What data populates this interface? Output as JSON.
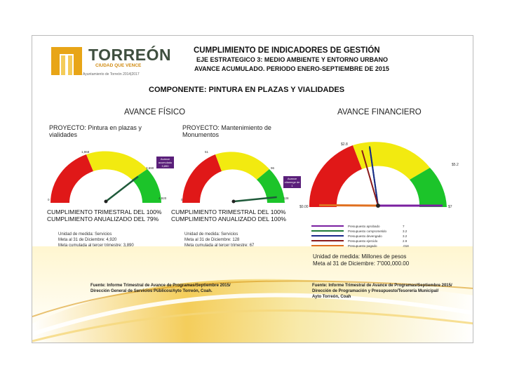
{
  "header": {
    "brand": "TORREÓN",
    "tagline": "CIUDAD QUE VENCE",
    "admin": "Ayuntamiento de Torreón 2014|2017",
    "title": "CUMPLIMIENTO DE INDICADORES DE GESTIÓN",
    "axis": "EJE ESTRATEGICO 3:  MEDIO AMBIENTE Y ENTORNO URBANO",
    "period": "AVANCE ACUMULADO. PERIODO ENERO-SEPTIEMBRE DE 2015",
    "component": "COMPONENTE: PINTURA EN PLAZAS Y VIALIDADES"
  },
  "sections": {
    "physical": "AVANCE FÍSICO",
    "financial": "AVANCE FINANCIERO"
  },
  "project1": {
    "title": "PROYECTO: Pintura en plazas y vialidades",
    "gauge": {
      "min_label": "0",
      "max_label": "4,920",
      "left_label": "1,968",
      "mid_label": "3,690",
      "callout": "Avance acumulado 3,890",
      "value": 3890,
      "max": 4920
    },
    "cumpl_trim": "CUMPLIMIENTO TRIMESTRAL DEL 100%",
    "cumpl_anual": "CUMPLIMIENTO ANUALIZADO DEL 79%",
    "unit": "Unidad de medida: Servicios",
    "goal": "Meta al 31 de Diciembre: 4,920",
    "accum": "Meta cumulada al tercer trimestre: 3,890"
  },
  "project2": {
    "title": "PROYECTO: Mantenimiento de Monumentos",
    "gauge": {
      "min_label": "0",
      "max_label": "128",
      "left_label": "51",
      "mid_label": "96",
      "callout": "Avance ctiamnge de 1",
      "value": 124,
      "max": 128
    },
    "cumpl_trim": "CUMPLIMIENTO TRIMESTRAL DEL 100%",
    "cumpl_anual": "CUMPLIMIENTO ANUALIZADO DEL 100%",
    "unit": "Unidad de medida: Servicios",
    "goal": "Meta al 31 de Diciembre: 128",
    "accum": "Meta cumulada al tercer trimestre: 67"
  },
  "financial": {
    "gauge": {
      "min_label": "$0.00",
      "max_label": "$7",
      "left_label": "$2.8",
      "right_label": "$5.2"
    },
    "legend": [
      {
        "label": "Presupuesto aprobado",
        "value": "7",
        "color": "#7a1fa0"
      },
      {
        "label": "Presupuesto comprometido",
        "value": "3.2",
        "color": "#1f7a3a"
      },
      {
        "label": "Presupuesto devengado",
        "value": "3.2",
        "color": "#1a2a8a"
      },
      {
        "label": "Presupuesto ejercido",
        "value": "2.9",
        "color": "#8a1a1a"
      },
      {
        "label": "Presupuesto pagado",
        "value": ".018",
        "color": "#e07020"
      }
    ],
    "unit": "Unidad de medida: Millones de pesos",
    "goal": "Meta al 31 de Diciembre: 7'000,000.00"
  },
  "sources": {
    "left": [
      "Fuente: Informe Trimestral de Avance de Programas/Septiembre 2015/",
      "Dirección General de Servicios Públicos/Ayto Torreón, Coah."
    ],
    "right": [
      "Fuente: Informe Trimestral de Avance de Programas/Septiembre 2015/",
      "Dirección de Programación y Presupuesto/Tesorería Municipal/",
      "Ayto Torreón, Coah"
    ]
  },
  "colors": {
    "red": "#e01818",
    "yellow": "#f2ea10",
    "green": "#1cc42a",
    "gold": "#e8a517",
    "callout": "#5a1f7a"
  }
}
